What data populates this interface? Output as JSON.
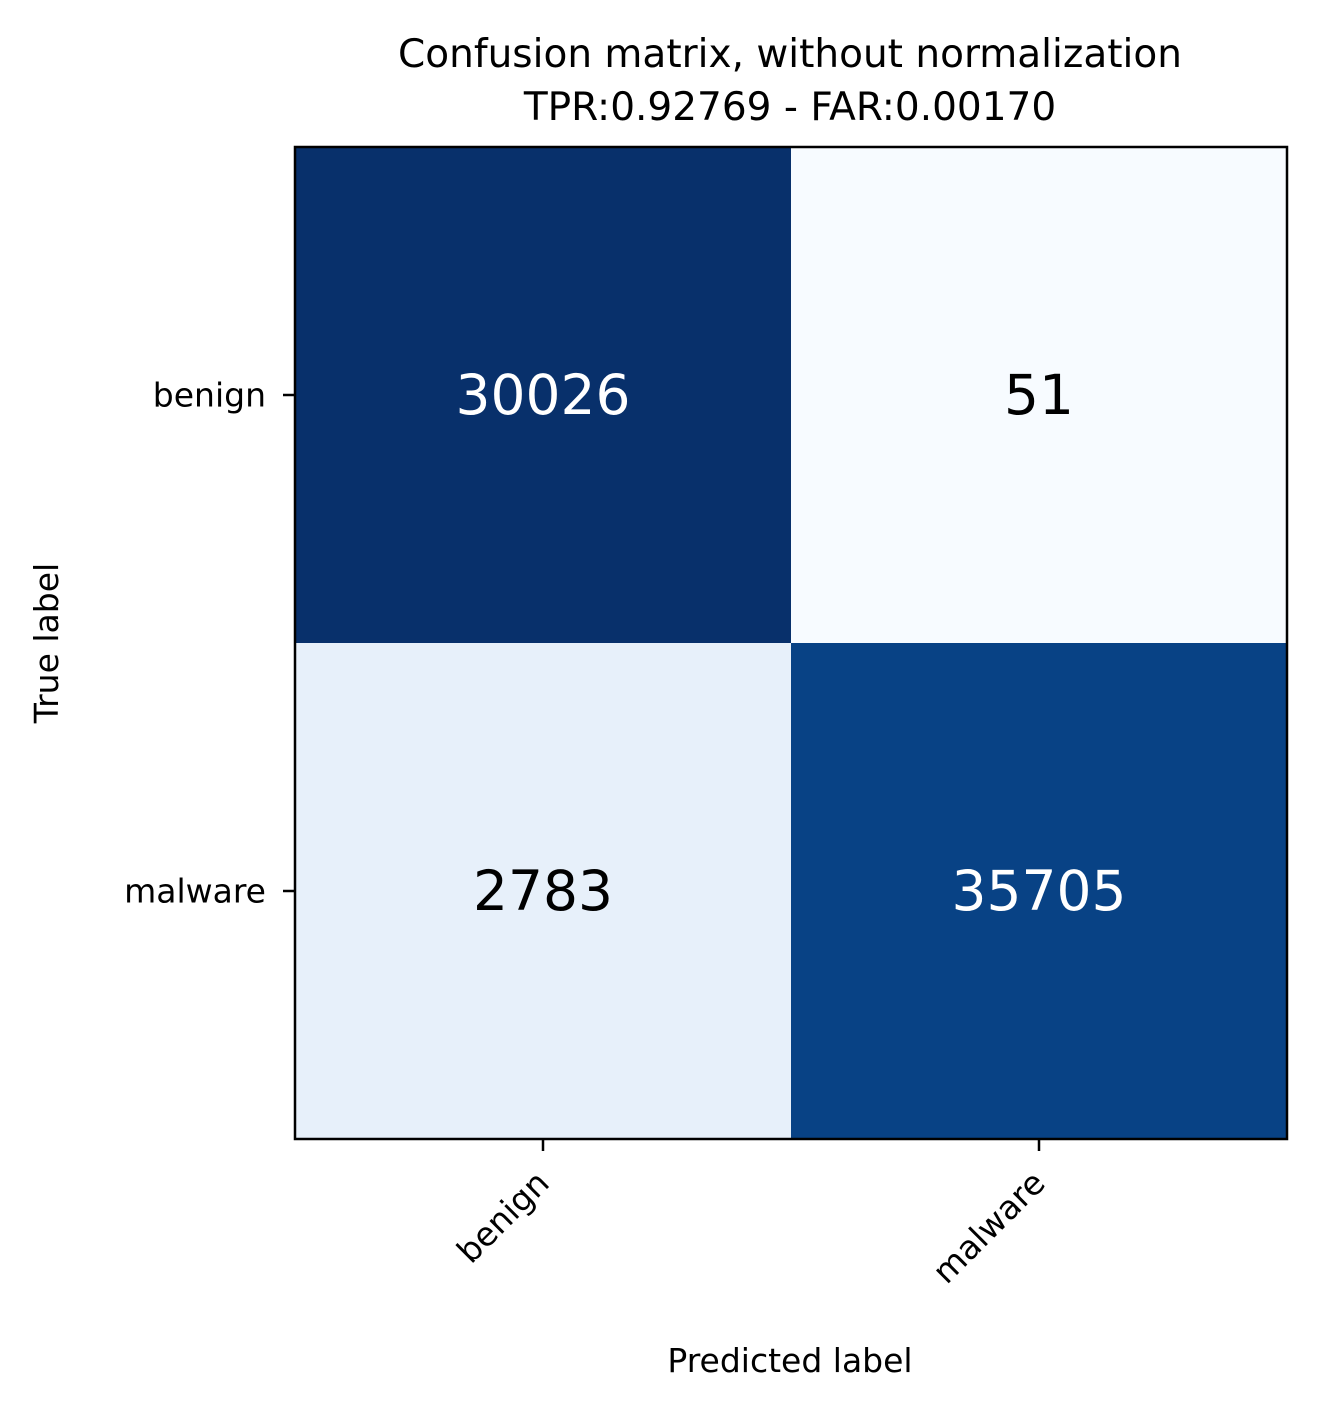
{
  "chart_data": {
    "type": "heatmap",
    "title": "Confusion matrix, without normalization",
    "subtitle": "TPR:0.92769 - FAR:0.00170",
    "xlabel": "Predicted label",
    "ylabel": "True label",
    "x_categories": [
      "benign",
      "malware"
    ],
    "y_categories": [
      "benign",
      "malware"
    ],
    "values": [
      [
        30026,
        51
      ],
      [
        2783,
        35705
      ]
    ],
    "colormap": "Blues",
    "cell_colors": [
      [
        "#08306b",
        "#f7fbff"
      ],
      [
        "#e7f0fa",
        "#084285"
      ]
    ],
    "text_colors": [
      [
        "#ffffff",
        "#000000"
      ],
      [
        "#000000",
        "#ffffff"
      ]
    ],
    "grid": false
  }
}
